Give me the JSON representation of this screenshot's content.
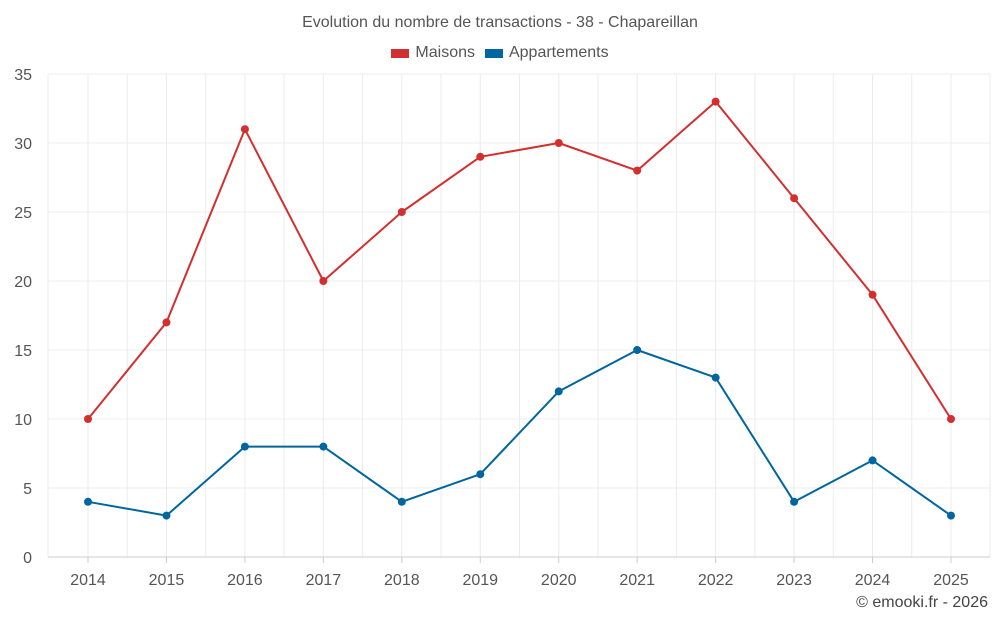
{
  "colors": {
    "maisons": "#d32f2f",
    "appartements": "#01659f",
    "grid": "#ececec",
    "axis": "#cccccc"
  },
  "chart_data": {
    "type": "line",
    "title": "Evolution du nombre de transactions - 38 - Chapareillan",
    "categories": [
      "2014",
      "2015",
      "2016",
      "2017",
      "2018",
      "2019",
      "2020",
      "2021",
      "2022",
      "2023",
      "2024",
      "2025"
    ],
    "series": [
      {
        "name": "Maisons",
        "color": "#d32f2f",
        "values": [
          10,
          17,
          31,
          20,
          25,
          29,
          30,
          28,
          33,
          26,
          19,
          10
        ]
      },
      {
        "name": "Appartements",
        "color": "#01659f",
        "values": [
          4,
          3,
          8,
          8,
          4,
          6,
          12,
          15,
          13,
          4,
          7,
          3
        ]
      }
    ],
    "ylim": [
      0,
      35
    ],
    "yticks": [
      "0",
      "5",
      "10",
      "15",
      "20",
      "25",
      "30",
      "35"
    ],
    "xlabel": "",
    "ylabel": "",
    "grid": true,
    "legend": "top-center"
  },
  "credit": "© emooki.fr - 2026"
}
